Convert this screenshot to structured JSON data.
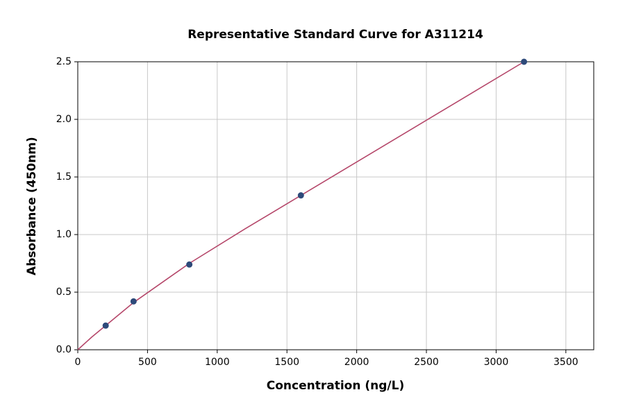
{
  "chart_data": {
    "type": "scatter",
    "title": "Representative Standard Curve for A311214",
    "x_label": "Concentration (ng/L)",
    "y_label": "Absorbance (450nm)",
    "points": {
      "color": "#2e4a7a",
      "x": [
        200,
        400,
        800,
        1600,
        3200
      ],
      "values": [
        0.21,
        0.42,
        0.74,
        1.34,
        2.5
      ]
    },
    "curve": {
      "color": "#b5476a",
      "x": [
        0,
        100,
        200,
        400,
        800,
        1200,
        1600,
        2000,
        2400,
        2800,
        3200
      ],
      "values": [
        0,
        0.11,
        0.21,
        0.41,
        0.75,
        1.05,
        1.34,
        1.63,
        1.92,
        2.21,
        2.5
      ]
    },
    "xlim": [
      0,
      3700
    ],
    "ylim": [
      0,
      2.5
    ],
    "xticks": [
      0,
      500,
      1000,
      1500,
      2000,
      2500,
      3000,
      3500
    ],
    "yticks": [
      {
        "value": 0,
        "label": "0.0"
      },
      {
        "value": 0.5,
        "label": "0.5"
      },
      {
        "value": 1,
        "label": "1.0"
      },
      {
        "value": 1.5,
        "label": "1.5"
      },
      {
        "value": 2,
        "label": "2.0"
      },
      {
        "value": 2.5,
        "label": "2.5"
      }
    ],
    "grid": true
  }
}
